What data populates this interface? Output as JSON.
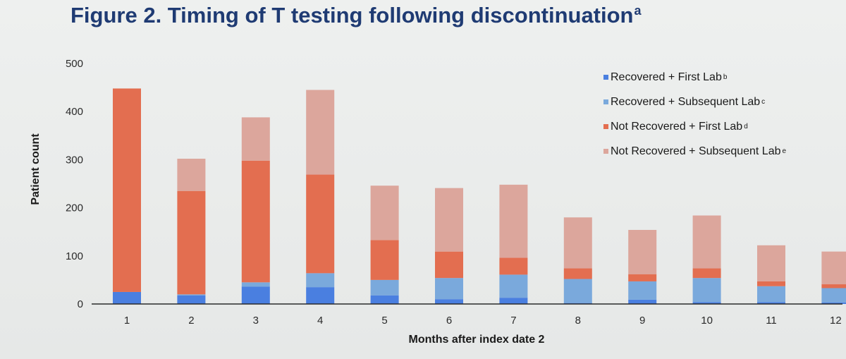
{
  "title": {
    "text": "Figure 2. Timing of T testing following discontinuation",
    "superscript": "a"
  },
  "colors": {
    "recovered_first": "#4a7fe0",
    "recovered_subsequent": "#7aa9dc",
    "not_recovered_first": "#e36e50",
    "not_recovered_subsequent": "#dca69c",
    "title": "#1f3b73",
    "axis": "#2a2a2a"
  },
  "chart_data": {
    "type": "bar",
    "stacked": true,
    "xlabel": "Months after index date 2",
    "ylabel": "Patient count",
    "ylim": [
      0,
      500
    ],
    "yticks": [
      0,
      100,
      200,
      300,
      400,
      500
    ],
    "grid": false,
    "legend_position": "top-right",
    "categories": [
      "1",
      "2",
      "3",
      "4",
      "5",
      "6",
      "7",
      "8",
      "9",
      "10",
      "11",
      "12"
    ],
    "series": [
      {
        "name": "Recovered + First Lab",
        "name_superscript": "b",
        "color_key": "recovered_first",
        "values": [
          25,
          18,
          36,
          35,
          18,
          10,
          13,
          2,
          9,
          4,
          4,
          3
        ]
      },
      {
        "name": "Recovered + Subsequent Lab",
        "name_superscript": "c",
        "color_key": "recovered_subsequent",
        "values": [
          0,
          2,
          9,
          29,
          32,
          44,
          48,
          50,
          38,
          50,
          33,
          30
        ]
      },
      {
        "name": "Not Recovered + First Lab",
        "name_superscript": "d",
        "color_key": "not_recovered_first",
        "values": [
          423,
          215,
          253,
          205,
          83,
          55,
          35,
          22,
          15,
          20,
          10,
          8
        ]
      },
      {
        "name": "Not Recovered + Subsequent Lab",
        "name_superscript": "e",
        "color_key": "not_recovered_subsequent",
        "values": [
          0,
          67,
          90,
          176,
          113,
          132,
          152,
          106,
          92,
          110,
          75,
          68
        ]
      }
    ]
  }
}
